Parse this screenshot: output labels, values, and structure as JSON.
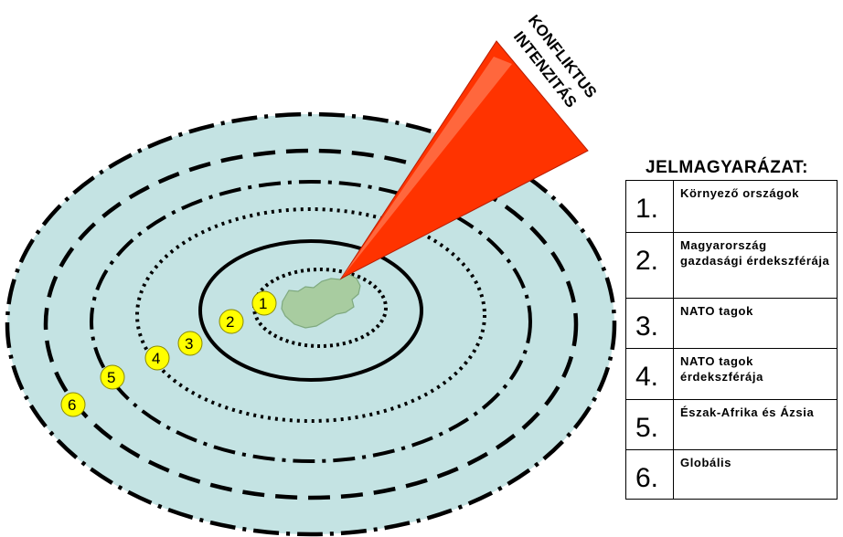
{
  "cone_label": [
    "KONFLIKTUS",
    "INTENZITÁS"
  ],
  "badges": [
    "1",
    "2",
    "3",
    "4",
    "5",
    "6"
  ],
  "legend": {
    "title": "JELMAGYARÁZAT:",
    "items": [
      {
        "num": "1.",
        "text": "Környező országok"
      },
      {
        "num": "2.",
        "text": "Magyarország gazdasági érdekszférája"
      },
      {
        "num": "3.",
        "text": "NATO tagok"
      },
      {
        "num": "4.",
        "text": "NATO tagok érdekszférája"
      },
      {
        "num": "5.",
        "text": "Észak-Afrika és Ázsia"
      },
      {
        "num": "6.",
        "text": "Globális"
      }
    ]
  },
  "colors": {
    "outer_fill": "#c4e3e3",
    "country_fill": "#a8cca0",
    "cone_fill": "#ff3300",
    "badge_fill": "#ffff00"
  }
}
